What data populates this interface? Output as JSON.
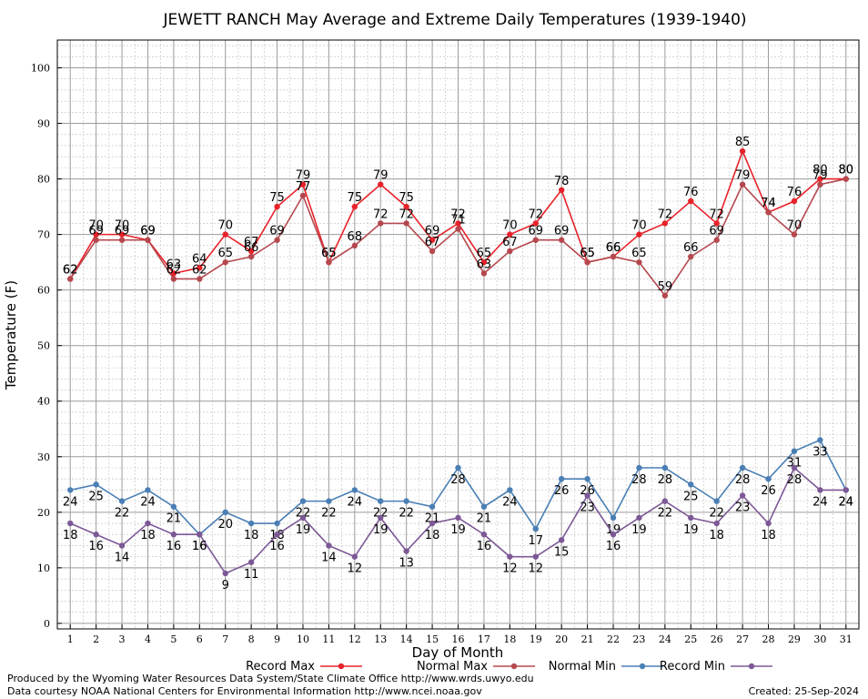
{
  "chart_data": {
    "type": "line",
    "title": "JEWETT RANCH May Average and Extreme Daily Temperatures (1939-1940)",
    "xlabel": "Day of Month",
    "ylabel": "Temperature (F)",
    "x": [
      1,
      2,
      3,
      4,
      5,
      6,
      7,
      8,
      9,
      10,
      11,
      12,
      13,
      14,
      15,
      16,
      17,
      18,
      19,
      20,
      21,
      22,
      23,
      24,
      25,
      26,
      27,
      28,
      29,
      30,
      31
    ],
    "xlim": [
      0.5,
      31.5
    ],
    "ylim": [
      -1,
      105
    ],
    "yticks": [
      0,
      10,
      20,
      30,
      40,
      50,
      60,
      70,
      80,
      90,
      100
    ],
    "grid": true,
    "legend_position": "bottom",
    "series": [
      {
        "name": "Record Max",
        "color": "#e8222a",
        "values": [
          62,
          70,
          70,
          69,
          63,
          64,
          70,
          67,
          75,
          79,
          65,
          75,
          79,
          75,
          69,
          72,
          65,
          70,
          72,
          78,
          65,
          66,
          70,
          72,
          76,
          72,
          85,
          74,
          76,
          80,
          80
        ]
      },
      {
        "name": "Normal Max",
        "color": "#b5484e",
        "values": [
          62,
          69,
          69,
          69,
          62,
          62,
          65,
          66,
          69,
          77,
          65,
          68,
          72,
          72,
          67,
          71,
          63,
          67,
          69,
          69,
          65,
          66,
          65,
          59,
          66,
          69,
          79,
          74,
          70,
          79,
          80
        ]
      },
      {
        "name": "Normal Min",
        "color": "#4a7fb5",
        "values": [
          24,
          25,
          22,
          24,
          21,
          16,
          20,
          18,
          18,
          22,
          22,
          24,
          22,
          22,
          21,
          28,
          21,
          24,
          17,
          26,
          26,
          19,
          28,
          28,
          25,
          22,
          28,
          26,
          31,
          33,
          24
        ]
      },
      {
        "name": "Record Min",
        "color": "#7c5896",
        "values": [
          18,
          16,
          14,
          18,
          16,
          16,
          9,
          11,
          16,
          19,
          14,
          12,
          19,
          13,
          18,
          19,
          16,
          12,
          12,
          15,
          23,
          16,
          19,
          22,
          19,
          18,
          23,
          18,
          28,
          24,
          24
        ]
      }
    ]
  },
  "footer": {
    "produced_by": "Produced by the Wyoming Water Resources Data System/State Climate Office http://www.wrds.uwyo.edu",
    "courtesy": "Data courtesy NOAA National Centers for Environmental Information http://www.ncei.noaa.gov",
    "created": "Created:  25-Sep-2024"
  }
}
